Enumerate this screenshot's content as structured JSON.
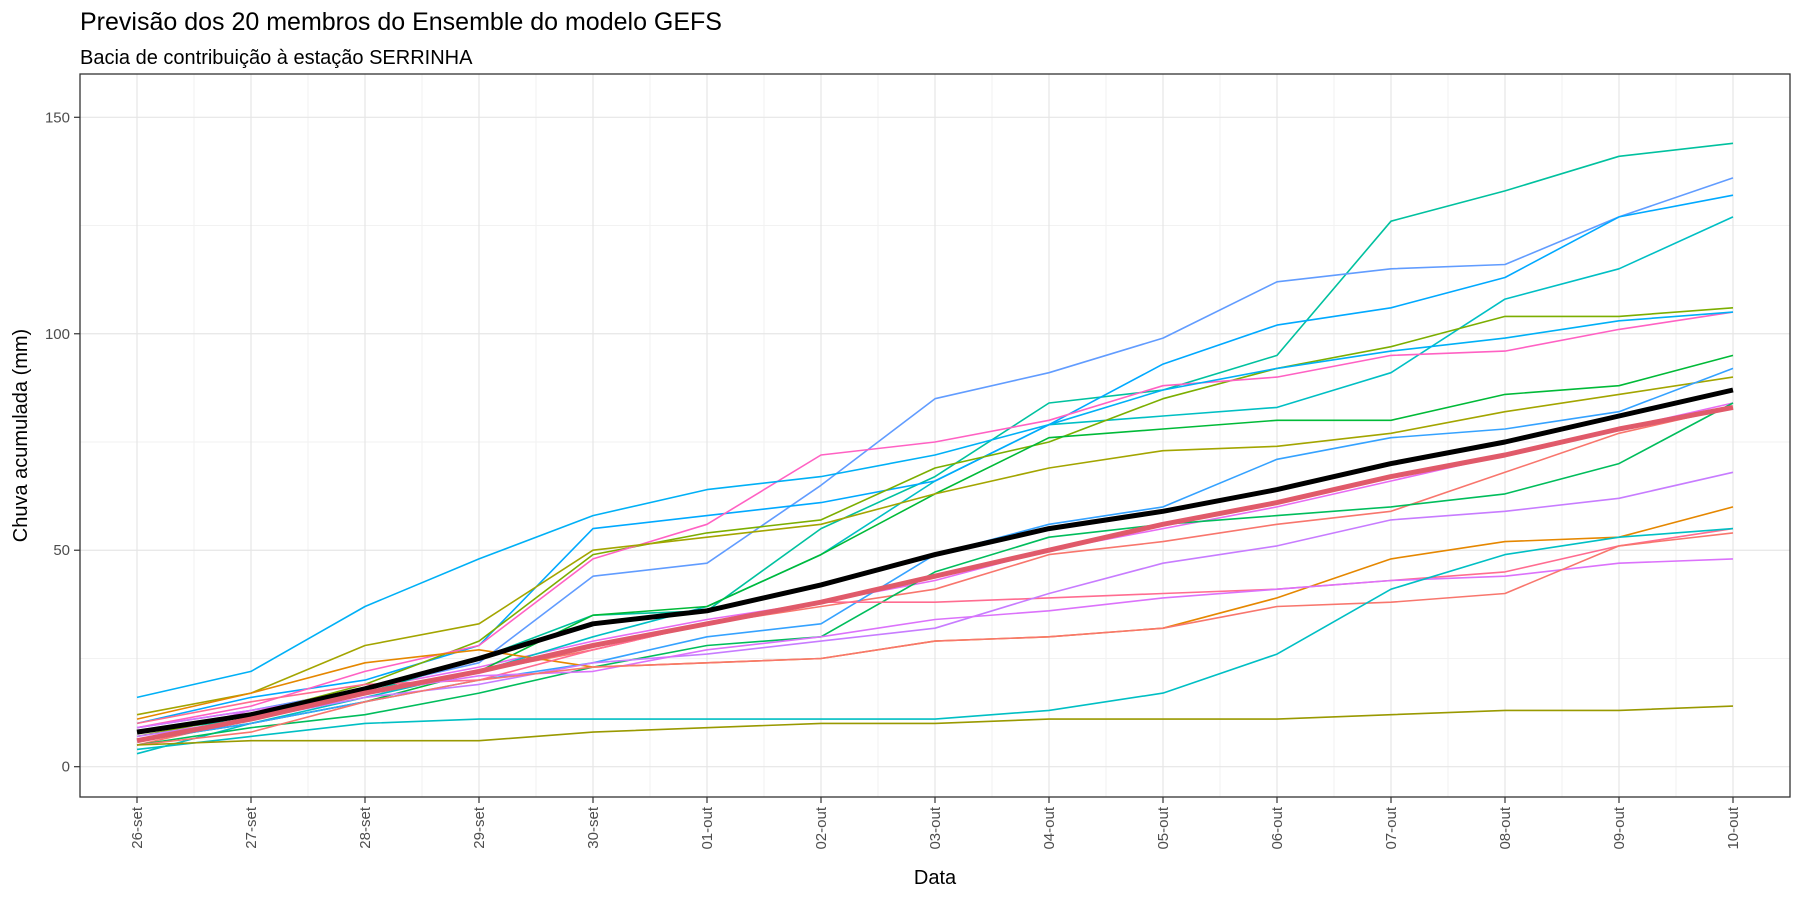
{
  "chart_data": {
    "type": "line",
    "title": "Previsão dos 20 membros do Ensemble do modelo GEFS",
    "subtitle": "Bacia de contribuição à estação SERRINHA",
    "xlabel": "Data",
    "ylabel": "Chuva acumulada (mm)",
    "categories": [
      "26-set",
      "27-set",
      "28-set",
      "29-set",
      "30-set",
      "01-out",
      "02-out",
      "03-out",
      "04-out",
      "05-out",
      "06-out",
      "07-out",
      "08-out",
      "09-out",
      "10-out"
    ],
    "yticks": [
      0,
      50,
      100,
      150
    ],
    "ylim": [
      -7,
      160
    ],
    "grid": true,
    "legend": "none",
    "series": [
      {
        "color": "#F8766D",
        "values": [
          5,
          11,
          17,
          22,
          27,
          33,
          37,
          41,
          49,
          52,
          56,
          59,
          68,
          77,
          83
        ]
      },
      {
        "color": "#E76BF3",
        "values": [
          6,
          13,
          18,
          23,
          29,
          34,
          38,
          43,
          50,
          55,
          60,
          66,
          72,
          78,
          84
        ]
      },
      {
        "color": "#00BFC4",
        "values": [
          3,
          10,
          16,
          22,
          30,
          37,
          49,
          66,
          79,
          81,
          83,
          91,
          108,
          115,
          127
        ]
      },
      {
        "color": "#00C19F",
        "values": [
          8,
          11,
          17,
          25,
          35,
          36,
          55,
          67,
          84,
          87,
          95,
          126,
          133,
          141,
          144
        ]
      },
      {
        "color": "#619CFF",
        "values": [
          9,
          13,
          18,
          24,
          44,
          47,
          65,
          85,
          91,
          99,
          112,
          115,
          116,
          127,
          136
        ]
      },
      {
        "color": "#00A9FF",
        "values": [
          10,
          16,
          20,
          28,
          55,
          58,
          61,
          66,
          79,
          93,
          102,
          106,
          113,
          127,
          132
        ]
      },
      {
        "color": "#7CAE00",
        "values": [
          7,
          12,
          19,
          29,
          49,
          54,
          57,
          69,
          75,
          85,
          92,
          97,
          104,
          104,
          106
        ]
      },
      {
        "color": "#FF61C3",
        "values": [
          9,
          14,
          22,
          28,
          48,
          56,
          72,
          75,
          80,
          88,
          90,
          95,
          96,
          101,
          105
        ]
      },
      {
        "color": "#00BA38",
        "values": [
          6,
          10,
          15,
          22,
          35,
          37,
          49,
          63,
          76,
          78,
          80,
          80,
          86,
          88,
          95
        ]
      },
      {
        "color": "#00B0F6",
        "values": [
          16,
          22,
          37,
          48,
          58,
          64,
          67,
          72,
          79,
          87,
          92,
          96,
          99,
          103,
          105
        ]
      },
      {
        "color": "#A3A500",
        "values": [
          12,
          17,
          28,
          33,
          50,
          53,
          56,
          63,
          69,
          73,
          74,
          77,
          82,
          86,
          90
        ]
      },
      {
        "color": "#35A2FF",
        "values": [
          6,
          10,
          15,
          20,
          24,
          30,
          33,
          49,
          56,
          60,
          71,
          76,
          78,
          82,
          92
        ]
      },
      {
        "color": "#00BD5C",
        "values": [
          5,
          9,
          12,
          17,
          23,
          28,
          30,
          45,
          53,
          56,
          58,
          60,
          63,
          70,
          84
        ]
      },
      {
        "color": "#E58700",
        "values": [
          11,
          17,
          24,
          27,
          23,
          24,
          25,
          29,
          30,
          32,
          39,
          48,
          52,
          53,
          60
        ]
      },
      {
        "color": "#FF6C90",
        "values": [
          10,
          15,
          19,
          20,
          27,
          33,
          38,
          38,
          39,
          40,
          41,
          43,
          45,
          51,
          55
        ]
      },
      {
        "color": "#C77CFF",
        "values": [
          7,
          11,
          16,
          19,
          24,
          26,
          29,
          32,
          40,
          47,
          51,
          57,
          59,
          62,
          68
        ]
      },
      {
        "color": "#DB72FB",
        "values": [
          9,
          13,
          17,
          21,
          22,
          27,
          30,
          34,
          36,
          39,
          41,
          43,
          44,
          47,
          48
        ]
      },
      {
        "color": "#F8766D",
        "values": [
          5,
          8,
          15,
          20,
          23,
          24,
          25,
          29,
          30,
          32,
          37,
          38,
          40,
          51,
          54
        ]
      },
      {
        "color": "#00BFC4",
        "values": [
          4,
          7,
          10,
          11,
          11,
          11,
          11,
          11,
          13,
          17,
          26,
          41,
          49,
          53,
          55
        ]
      },
      {
        "color": "#999900",
        "values": [
          5,
          6,
          6,
          6,
          8,
          9,
          10,
          10,
          11,
          11,
          11,
          12,
          13,
          13,
          14
        ]
      }
    ],
    "mean_black": {
      "color": "#000000",
      "values": [
        8,
        12,
        18,
        25,
        33,
        36,
        42,
        49,
        55,
        59,
        64,
        70,
        75,
        81,
        87
      ]
    },
    "mean_red": {
      "color": "#E05A6A",
      "values": [
        6,
        11,
        17,
        22,
        28,
        33,
        38,
        44,
        50,
        56,
        61,
        67,
        72,
        78,
        83
      ]
    }
  }
}
